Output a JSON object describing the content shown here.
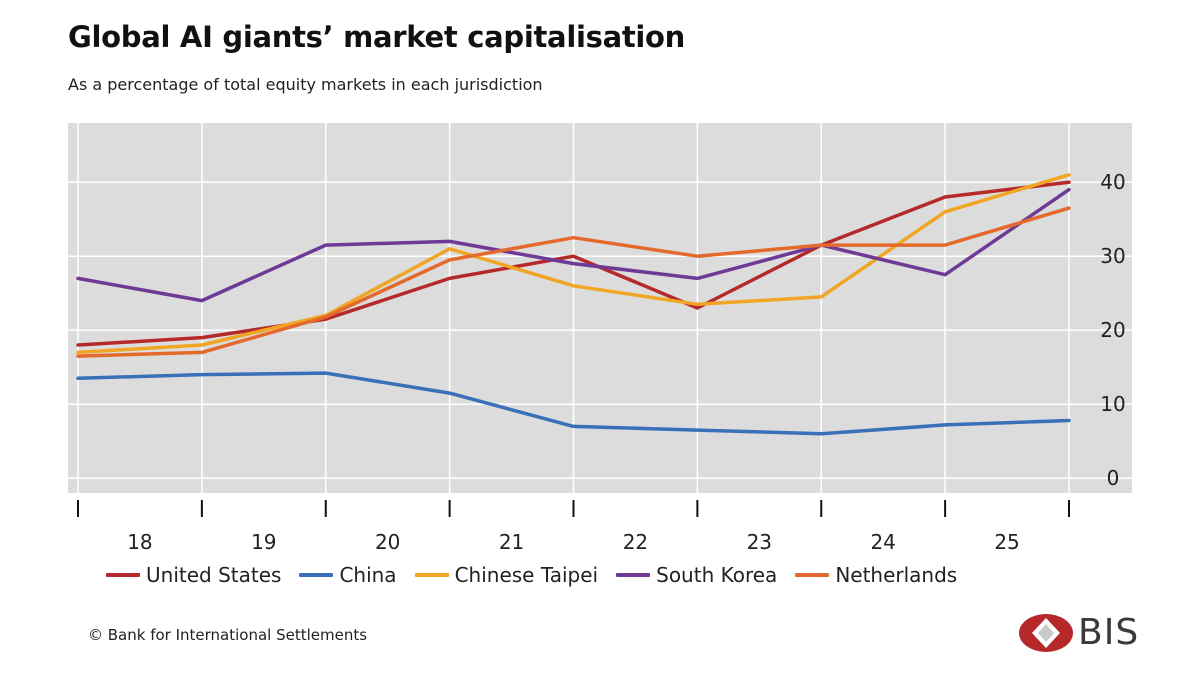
{
  "header": {
    "title": "Global AI giants’ market capitalisation",
    "subtitle": "As a percentage of total equity markets in each jurisdiction"
  },
  "footer": {
    "copyright": "© Bank for International Settlements",
    "logo_text": "BIS"
  },
  "chart_data": {
    "type": "line",
    "title": "Global AI giants’ market capitalisation",
    "subtitle": "As a percentage of total equity markets in each jurisdiction",
    "x": [
      0,
      1,
      2,
      3,
      4,
      5,
      6,
      7,
      8
    ],
    "x_tick_labels": [
      "18",
      "19",
      "20",
      "21",
      "22",
      "23",
      "24",
      "25"
    ],
    "ylim": [
      -2,
      48
    ],
    "y_ticks": [
      0,
      10,
      20,
      30,
      40
    ],
    "y_axis_side": "right",
    "grid": true,
    "legend_position": "bottom",
    "series": [
      {
        "name": "United States",
        "color": "#b5292a",
        "values": [
          18,
          19,
          21.5,
          27,
          30,
          23,
          31.5,
          38,
          40
        ]
      },
      {
        "name": "China",
        "color": "#3a70b8",
        "values": [
          13.5,
          14,
          14.2,
          11.5,
          7,
          6.5,
          6,
          7.2,
          7.8
        ]
      },
      {
        "name": "Chinese Taipei",
        "color": "#f0a624",
        "values": [
          17,
          18,
          22,
          31,
          26,
          23.5,
          24.5,
          36,
          41
        ]
      },
      {
        "name": "South Korea",
        "color": "#6f3a96",
        "values": [
          27,
          24,
          31.5,
          32,
          29,
          27,
          31.5,
          27.5,
          39
        ]
      },
      {
        "name": "Netherlands",
        "color": "#e36a2c",
        "values": [
          16.5,
          17,
          21.8,
          29.5,
          32.5,
          30,
          31.5,
          31.5,
          36.5
        ]
      }
    ]
  }
}
